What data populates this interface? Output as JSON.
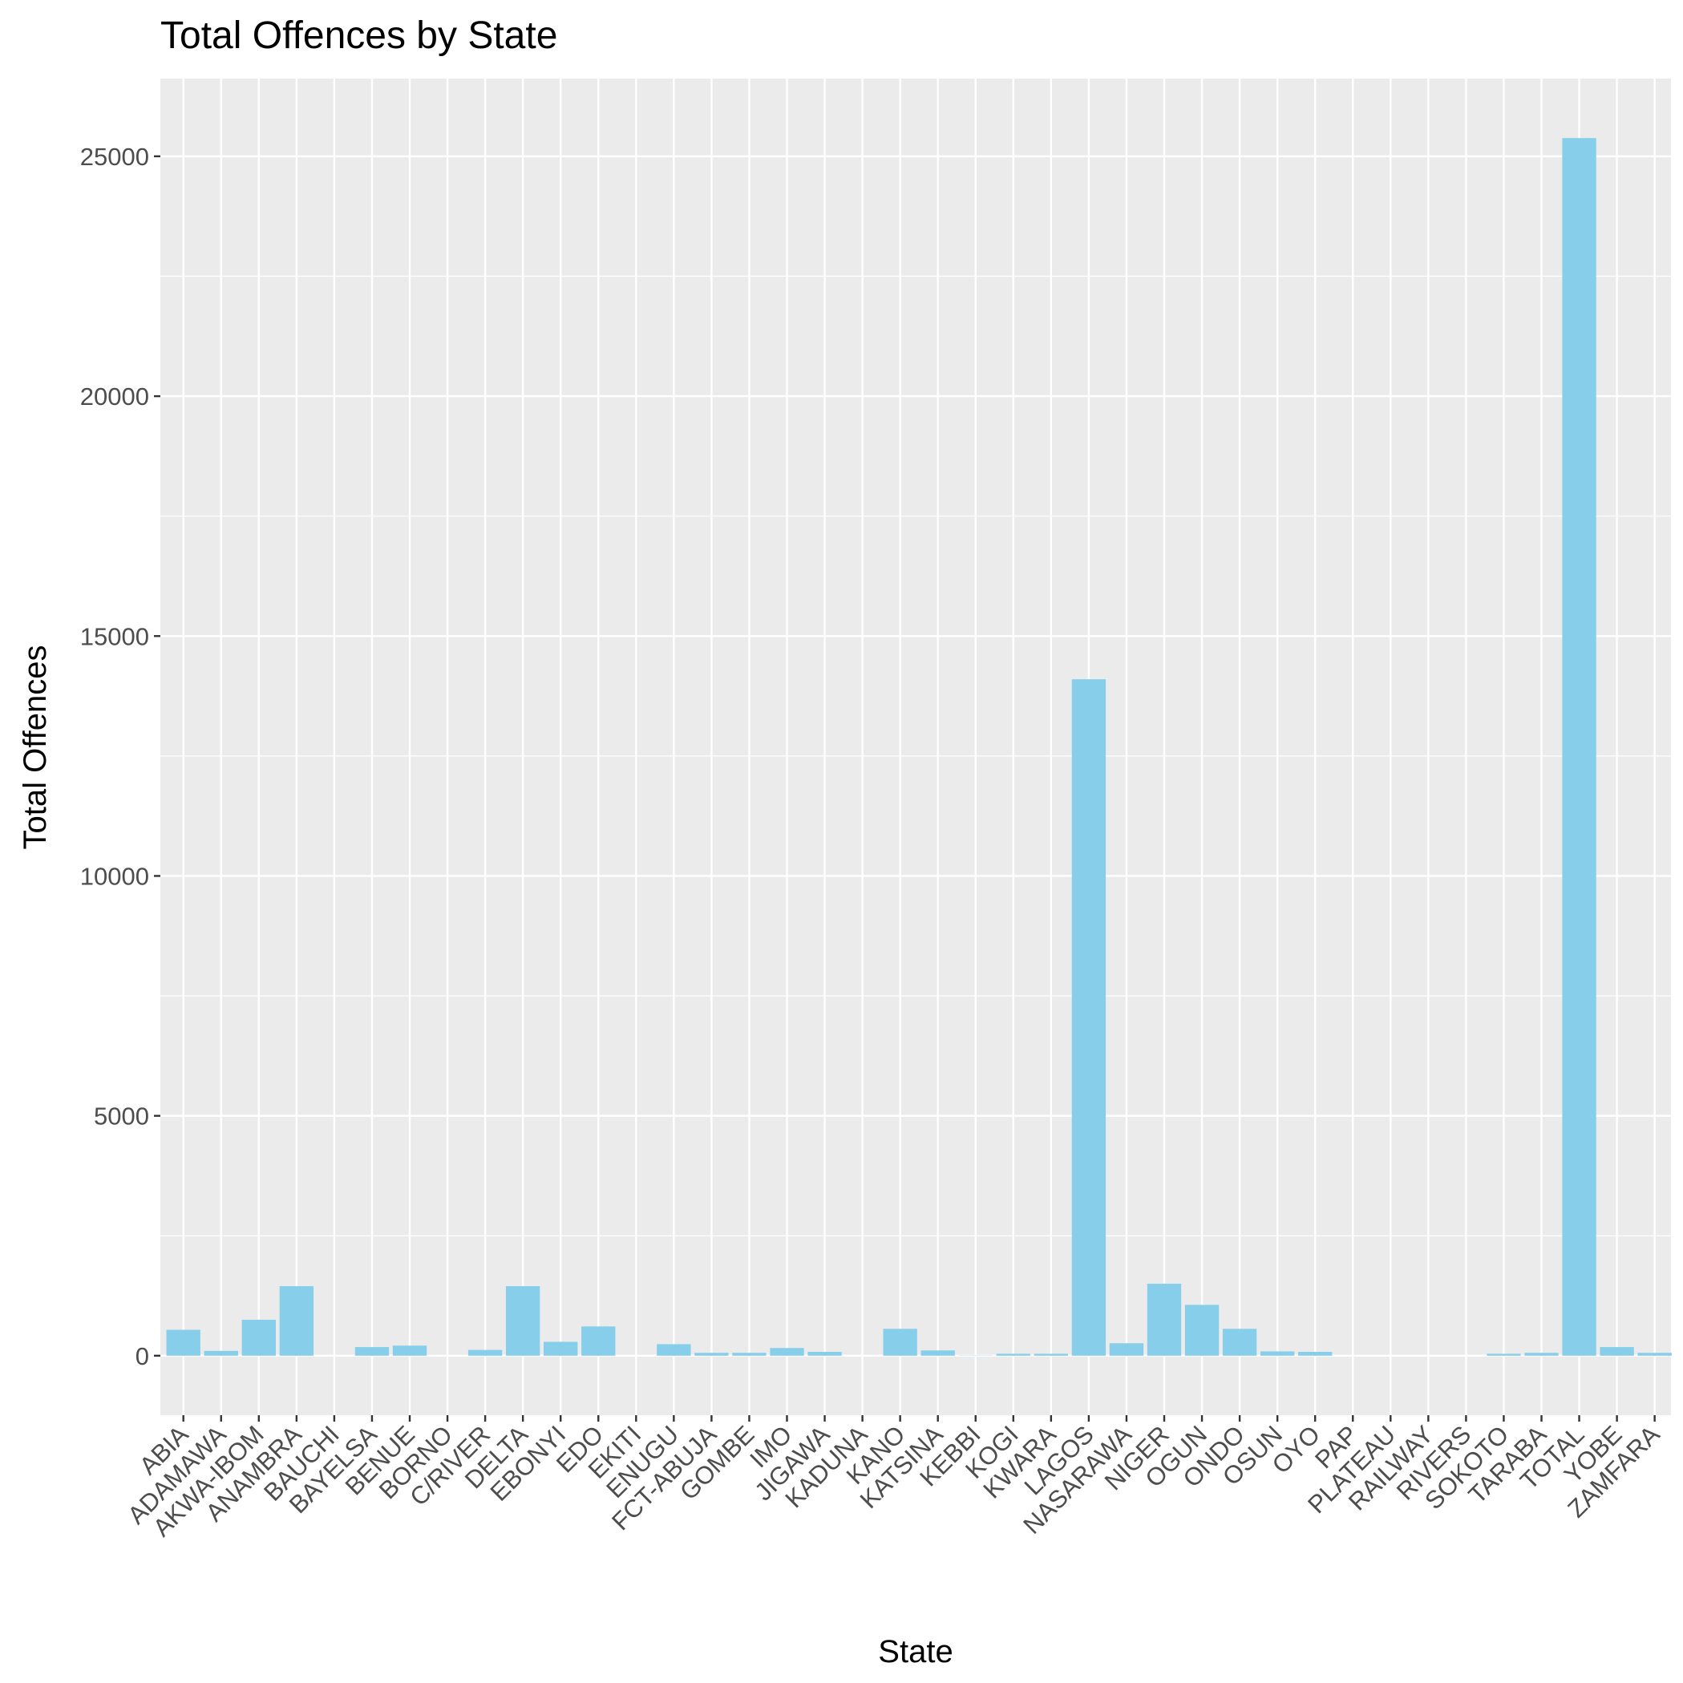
{
  "chart_data": {
    "type": "bar",
    "title": "Total Offences by State",
    "xlabel": "State",
    "ylabel": "Total Offences",
    "categories": [
      "ABIA",
      "ADAMAWA",
      "AKWA-IBOM",
      "ANAMBRA",
      "BAUCHI",
      "BAYELSA",
      "BENUE",
      "BORNO",
      "C/RIVER",
      "DELTA",
      "EBONYI",
      "EDO",
      "EKITI",
      "ENUGU",
      "FCT-ABUJA",
      "GOMBE",
      "IMO",
      "JIGAWA",
      "KADUNA",
      "KANO",
      "KATSINA",
      "KEBBI",
      "KOGI",
      "KWARA",
      "LAGOS",
      "NASARAWA",
      "NIGER",
      "OGUN",
      "ONDO",
      "OSUN",
      "OYO",
      "PAP",
      "PLATEAU",
      "RAILWAY",
      "RIVERS",
      "SOKOTO",
      "TARABA",
      "TOTAL",
      "YOBE",
      "ZAMFARA"
    ],
    "values": [
      540,
      100,
      750,
      1450,
      0,
      180,
      210,
      0,
      120,
      1450,
      290,
      610,
      0,
      240,
      60,
      60,
      160,
      80,
      0,
      560,
      110,
      5,
      40,
      40,
      14100,
      260,
      1500,
      1060,
      560,
      90,
      80,
      0,
      0,
      0,
      0,
      40,
      60,
      25380,
      180,
      60
    ],
    "yticks": [
      0,
      5000,
      10000,
      15000,
      20000,
      25000
    ],
    "ylim": [
      -1240,
      26620
    ],
    "bar_color": "#87CEEB",
    "panel_color": "#EBEBEB",
    "grid": true,
    "legend": "none"
  }
}
